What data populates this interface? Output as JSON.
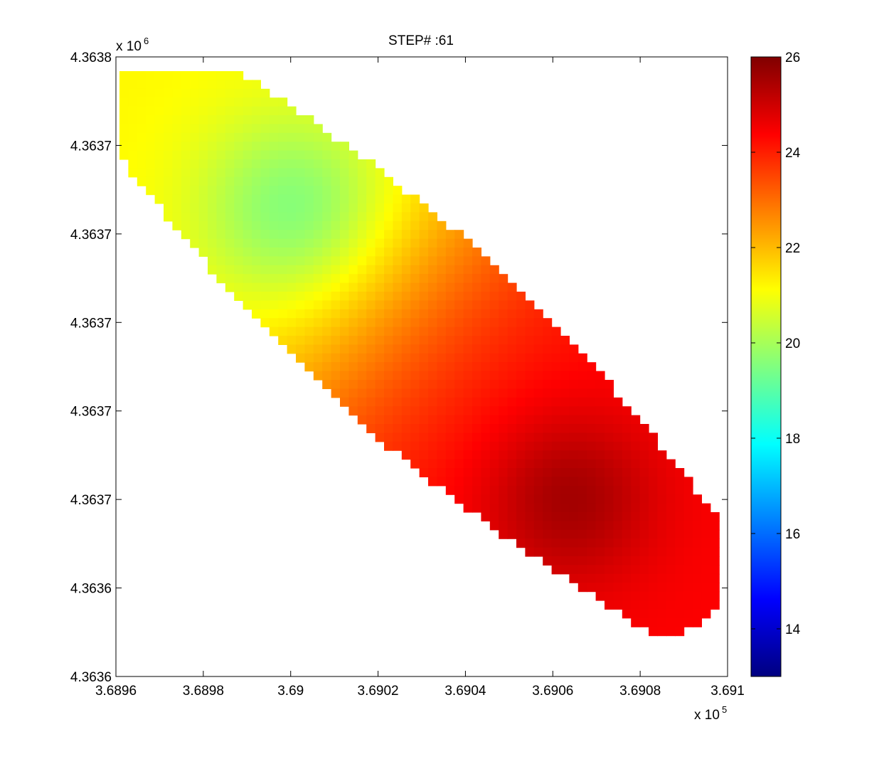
{
  "chart_data": {
    "type": "heatmap",
    "title": "STEP# :61",
    "xlabel": "",
    "ylabel": "",
    "x_ticks": [
      "3.6896",
      "3.6898",
      "3.69",
      "3.6902",
      "3.6904",
      "3.6906",
      "3.6908",
      "3.691"
    ],
    "y_ticks": [
      "4.3638",
      "4.3637",
      "4.3637",
      "4.3637",
      "4.3637",
      "4.3637",
      "4.3636",
      "4.3636"
    ],
    "x_multiplier": {
      "base": "x 10",
      "exp": "5"
    },
    "y_multiplier": {
      "base": "x 10",
      "exp": "6"
    },
    "colorbar": {
      "colormap": "jet",
      "clim": [
        13,
        26
      ],
      "ticks": [
        "26",
        "24",
        "22",
        "20",
        "18",
        "16",
        "14"
      ],
      "tick_values": [
        26,
        24,
        22,
        20,
        18,
        16,
        14
      ]
    },
    "value_range": [
      19.3,
      25.6
    ],
    "field": {
      "description_units": "temperature-like scalar, colorbar units",
      "cold_center_value": 19.3,
      "hot_center_value": 25.6,
      "edge_top_left_value": 21.0
    },
    "grid": false
  }
}
